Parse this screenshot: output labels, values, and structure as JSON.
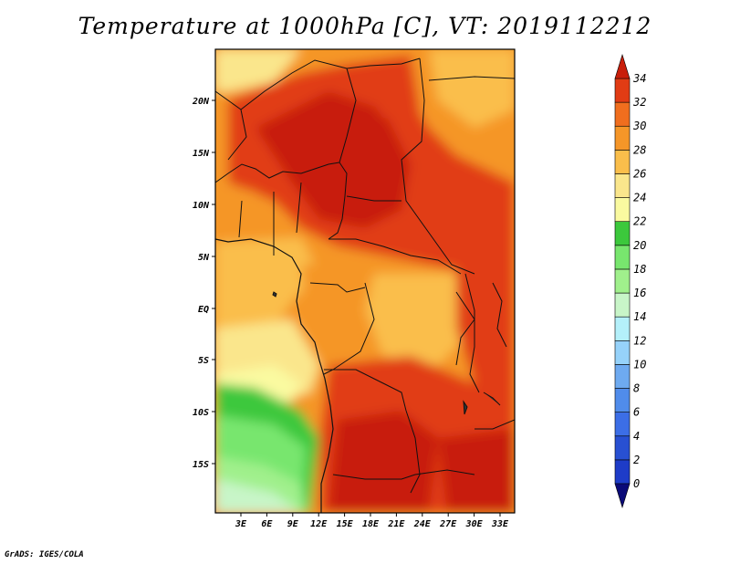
{
  "title": "Temperature at 1000hPa [C], VT: 2019112212",
  "credit": "GrADS: IGES/COLA",
  "lat_labels": [
    "20N",
    "15N",
    "10N",
    "5N",
    "EQ",
    "5S",
    "10S",
    "15S"
  ],
  "lon_labels": [
    "3E",
    "6E",
    "9E",
    "12E",
    "15E",
    "18E",
    "21E",
    "24E",
    "27E",
    "30E",
    "33E"
  ],
  "colorbar": {
    "labels": [
      "0",
      "2",
      "4",
      "6",
      "8",
      "10",
      "12",
      "14",
      "16",
      "18",
      "20",
      "22",
      "24",
      "26",
      "28",
      "30",
      "32",
      "34"
    ],
    "colors": [
      "#0a0a78",
      "#1e3cc8",
      "#2850d2",
      "#3c6ee6",
      "#508ceb",
      "#6eaaf0",
      "#96d2fa",
      "#b4f0fa",
      "#c8f5c8",
      "#a0f08c",
      "#78e66e",
      "#3cc83c",
      "#fafaa0",
      "#fae68c",
      "#fabe4b",
      "#f59628",
      "#f06e1e",
      "#e13c14",
      "#c81e0a"
    ]
  }
}
